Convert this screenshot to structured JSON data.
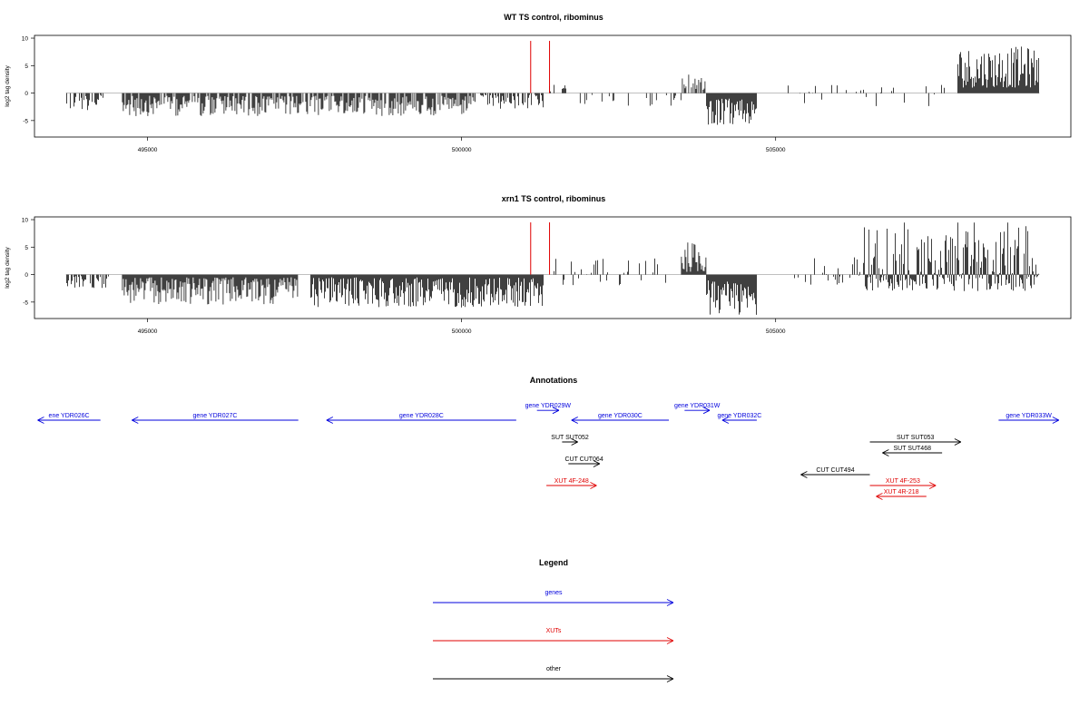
{
  "chart_data": [
    {
      "type": "bar",
      "title": "WT TS control, ribominus",
      "ylabel": "log2 tag density",
      "xlim": [
        493200,
        509700
      ],
      "ylim": [
        -8,
        10.5
      ],
      "xticks": [
        495000,
        500000,
        505000
      ],
      "xtick_labels": [
        "495000",
        "500000",
        "505000"
      ],
      "yticks": [
        10,
        5,
        0,
        -5
      ],
      "ytick_labels": [
        "10",
        "5",
        "0",
        "-5"
      ],
      "markers": [
        {
          "x": 501100,
          "color": "#e00000"
        },
        {
          "x": 501400,
          "color": "#e00000"
        }
      ],
      "series_profile": [
        {
          "from": 493700,
          "to": 494300,
          "min": -3.2,
          "max": -0.3,
          "density": 0.55
        },
        {
          "from": 494600,
          "to": 500200,
          "min": -4.2,
          "max": -0.5,
          "density": 0.8
        },
        {
          "from": 500200,
          "to": 501300,
          "min": -3.0,
          "max": -0.3,
          "density": 0.55
        },
        {
          "from": 501400,
          "to": 501700,
          "min": 0.3,
          "max": 1.5,
          "density": 0.3
        },
        {
          "from": 501700,
          "to": 503500,
          "min": -2.5,
          "max": -0.3,
          "density": 0.12
        },
        {
          "from": 503500,
          "to": 503900,
          "min": 0.5,
          "max": 3.5,
          "density": 0.6
        },
        {
          "from": 503900,
          "to": 504700,
          "min": -6.0,
          "max": -1.0,
          "density": 1.0
        },
        {
          "from": 505200,
          "to": 507900,
          "min": -2.5,
          "max": 1.5,
          "density": 0.12
        },
        {
          "from": 507900,
          "to": 509200,
          "min": 1.0,
          "max": 8.5,
          "density": 1.0
        }
      ]
    },
    {
      "type": "bar",
      "title": "xrn1 TS control, ribominus",
      "ylabel": "log2 tag density",
      "xlim": [
        493200,
        509700
      ],
      "ylim": [
        -8,
        10.5
      ],
      "xticks": [
        495000,
        500000,
        505000
      ],
      "xtick_labels": [
        "495000",
        "500000",
        "505000"
      ],
      "yticks": [
        10,
        5,
        0,
        -5
      ],
      "ytick_labels": [
        "10",
        "5",
        "0",
        "-5"
      ],
      "markers": [
        {
          "x": 501100,
          "color": "#e00000"
        },
        {
          "x": 501400,
          "color": "#e00000"
        }
      ],
      "series_profile": [
        {
          "from": 493700,
          "to": 494400,
          "min": -2.5,
          "max": -0.3,
          "density": 0.6
        },
        {
          "from": 494600,
          "to": 497400,
          "min": -5.5,
          "max": -0.5,
          "density": 1.0
        },
        {
          "from": 497600,
          "to": 501300,
          "min": -6.0,
          "max": -0.5,
          "density": 1.0
        },
        {
          "from": 501400,
          "to": 503300,
          "min": -2.0,
          "max": 3.0,
          "density": 0.25
        },
        {
          "from": 503500,
          "to": 503900,
          "min": 0.5,
          "max": 6.0,
          "density": 0.9
        },
        {
          "from": 503900,
          "to": 504700,
          "min": -7.5,
          "max": -1.0,
          "density": 1.0
        },
        {
          "from": 505100,
          "to": 506400,
          "min": -2.0,
          "max": 3.5,
          "density": 0.2
        },
        {
          "from": 506400,
          "to": 509200,
          "min": -3.0,
          "max": 9.5,
          "density": 1.0
        }
      ]
    }
  ],
  "annotations": {
    "title": "Annotations",
    "tracks": [
      {
        "label": "ene YDR026C",
        "start": 494250,
        "end": 493250,
        "row": 0,
        "color": "#0000dd"
      },
      {
        "label": "gene YDR027C",
        "start": 497400,
        "end": 494750,
        "row": 0,
        "color": "#0000dd"
      },
      {
        "label": "gene YDR028C",
        "start": 500870,
        "end": 497850,
        "row": 0,
        "color": "#0000dd"
      },
      {
        "label": "gene YDR029W",
        "start": 501200,
        "end": 501550,
        "row": -1,
        "color": "#0000dd"
      },
      {
        "label": "gene YDR030C",
        "start": 503300,
        "end": 501750,
        "row": 0,
        "color": "#0000dd"
      },
      {
        "label": "gene YDR031W",
        "start": 503550,
        "end": 503950,
        "row": -1,
        "color": "#0000dd"
      },
      {
        "label": "gene YDR032C",
        "start": 504700,
        "end": 504150,
        "row": 0,
        "color": "#0000dd"
      },
      {
        "label": "gene YDR033W",
        "start": 508550,
        "end": 509510,
        "row": 0,
        "color": "#0000dd"
      },
      {
        "label": "SUT SUT052",
        "start": 501600,
        "end": 501850,
        "row": 1,
        "color": "#000000"
      },
      {
        "label": "CUT CUT064",
        "start": 501700,
        "end": 502200,
        "row": 2,
        "color": "#000000"
      },
      {
        "label": "XUT 4F-248",
        "start": 501350,
        "end": 502150,
        "row": 3,
        "color": "#e00000"
      },
      {
        "label": "CUT CUT494",
        "start": 506500,
        "end": 505400,
        "row": 2.5,
        "color": "#000000"
      },
      {
        "label": "SUT SUT053",
        "start": 506500,
        "end": 507950,
        "row": 1,
        "color": "#000000"
      },
      {
        "label": "SUT SUT468",
        "start": 507650,
        "end": 506700,
        "row": 1.5,
        "color": "#000000"
      },
      {
        "label": "XUT 4F-253",
        "start": 506500,
        "end": 507550,
        "row": 3,
        "color": "#e00000"
      },
      {
        "label": "XUT 4R-218",
        "start": 507400,
        "end": 506600,
        "row": 3.5,
        "color": "#e00000"
      }
    ]
  },
  "legend": {
    "title": "Legend",
    "items": [
      {
        "label": "genes",
        "color": "#0000dd"
      },
      {
        "label": "XUTs",
        "color": "#e00000"
      },
      {
        "label": "other",
        "color": "#000000"
      }
    ]
  }
}
